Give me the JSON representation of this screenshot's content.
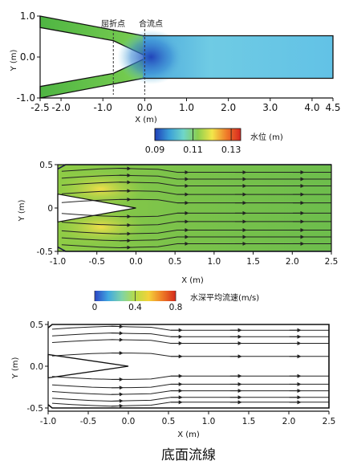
{
  "chart_data": [
    {
      "type": "heatmap",
      "xlabel": "X (m)",
      "ylabel": "Y (m)",
      "xlim": [
        -2.5,
        4.5
      ],
      "ylim": [
        -1.0,
        1.0
      ],
      "xticks": [
        "-2.5",
        "-2.0",
        "-1.0",
        "0.0",
        "1.0",
        "2.0",
        "3.0",
        "4.0",
        "4.5"
      ],
      "xtick_values": [
        -2.5,
        -2.0,
        -1.0,
        0.0,
        1.0,
        2.0,
        3.0,
        4.0,
        4.5
      ],
      "yticks": [
        "1.0",
        "0.0",
        "-1.0"
      ],
      "ytick_values": [
        1.0,
        0.0,
        -1.0
      ],
      "annotations": [
        {
          "text": "屈折点",
          "x": -0.75
        },
        {
          "text": "合流点",
          "x": 0.0
        }
      ],
      "colorbar": {
        "label": "水位 (m)",
        "ticks": [
          "0.09",
          "0.11",
          "0.13"
        ],
        "tick_values": [
          0.09,
          0.11,
          0.13
        ],
        "range": [
          0.09,
          0.135
        ],
        "colors": [
          "#1f3fb8",
          "#3a9fd8",
          "#6fd6c9",
          "#8ccf4f",
          "#f2e64a",
          "#f07d2a",
          "#d8261f"
        ]
      },
      "field": {
        "upstream_color": "#5cba48",
        "downstream_color": "#6cc6e0",
        "junction_color": "#2f62c4"
      }
    },
    {
      "type": "heatmap",
      "xlabel": "X  (m)",
      "ylabel": "Y  (m)",
      "xlim": [
        -1.0,
        2.5
      ],
      "ylim": [
        -0.5,
        0.5
      ],
      "xticks": [
        "-1.0",
        "-0.5",
        "0.0",
        "0.5",
        "1.0",
        "1.5",
        "2.0",
        "2.5"
      ],
      "xtick_values": [
        -1.0,
        -0.5,
        0.0,
        0.5,
        1.0,
        1.5,
        2.0,
        2.5
      ],
      "yticks": [
        "0.5",
        "0",
        "-0.5"
      ],
      "ytick_values": [
        0.5,
        0.0,
        -0.5
      ],
      "streamlines_y": [
        0.42,
        0.34,
        0.26,
        0.16,
        0.06,
        -0.06,
        -0.16,
        -0.26,
        -0.34,
        -0.42
      ],
      "colorbar": {
        "label": "水深平均流速(m/s)",
        "ticks": [
          "0",
          "0.4",
          "0.8"
        ],
        "tick_values": [
          0.0,
          0.4,
          0.8
        ],
        "range": [
          0.0,
          0.8
        ],
        "colors": [
          "#2a44c4",
          "#41a8e0",
          "#7ed3a8",
          "#b8dc46",
          "#f4d23a",
          "#ee7c26",
          "#d42a1c"
        ]
      },
      "field": {
        "base_color": "#7fc64a",
        "fast_color": "#f3e24c"
      }
    },
    {
      "type": "line",
      "xlabel": "X  (m)",
      "ylabel": "Y  (m)",
      "xlim": [
        -1.0,
        2.5
      ],
      "ylim": [
        -0.5,
        0.5
      ],
      "xticks": [
        "-1.0",
        "-0.5",
        "0.0",
        "0.5",
        "1.0",
        "1.5",
        "2.0",
        "2.5"
      ],
      "xtick_values": [
        -1.0,
        -0.5,
        0.0,
        0.5,
        1.0,
        1.5,
        2.0,
        2.5
      ],
      "yticks": [
        "0.5",
        "0.0",
        "-0.5"
      ],
      "ytick_values": [
        0.5,
        0.0,
        -0.5
      ],
      "streamlines_y": [
        0.44,
        0.36,
        0.28,
        0.12,
        -0.12,
        -0.22,
        -0.3,
        -0.38,
        -0.44
      ],
      "caption": "底面流線"
    }
  ]
}
